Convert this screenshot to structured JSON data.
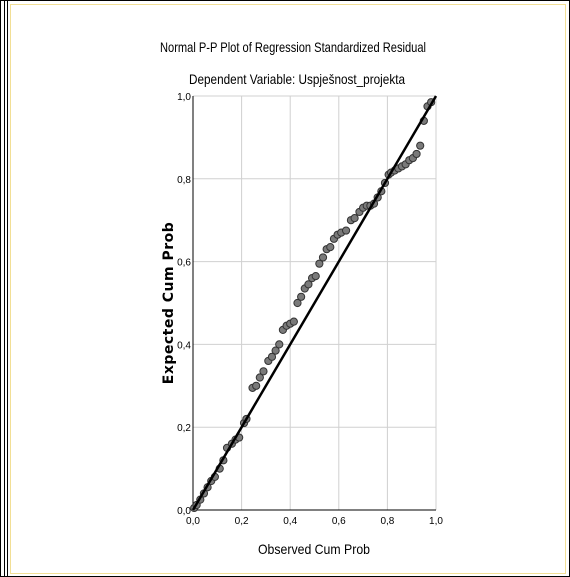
{
  "chart_data": {
    "type": "scatter",
    "title": "Normal P-P Plot of Regression Standardized Residual",
    "subtitle": "Dependent Variable: Uspješnost_projekta",
    "xlabel": "Observed Cum Prob",
    "ylabel": "Expected Cum Prob",
    "xlim": [
      0,
      1
    ],
    "ylim": [
      0,
      1
    ],
    "x_ticks": [
      "0,0",
      "0,2",
      "0,4",
      "0,6",
      "0,8",
      "1,0"
    ],
    "y_ticks": [
      "0,0",
      "0,2",
      "0,4",
      "0,6",
      "0,8",
      "1,0"
    ],
    "grid": true,
    "reference_line": [
      [
        0,
        0
      ],
      [
        1,
        1
      ]
    ],
    "series": [
      {
        "points": [
          [
            0.005,
            0.005
          ],
          [
            0.015,
            0.012
          ],
          [
            0.03,
            0.025
          ],
          [
            0.045,
            0.04
          ],
          [
            0.06,
            0.055
          ],
          [
            0.075,
            0.07
          ],
          [
            0.09,
            0.08
          ],
          [
            0.11,
            0.1
          ],
          [
            0.125,
            0.12
          ],
          [
            0.14,
            0.15
          ],
          [
            0.16,
            0.16
          ],
          [
            0.175,
            0.17
          ],
          [
            0.19,
            0.175
          ],
          [
            0.21,
            0.21
          ],
          [
            0.22,
            0.22
          ],
          [
            0.245,
            0.295
          ],
          [
            0.26,
            0.3
          ],
          [
            0.275,
            0.32
          ],
          [
            0.29,
            0.335
          ],
          [
            0.31,
            0.36
          ],
          [
            0.325,
            0.37
          ],
          [
            0.34,
            0.385
          ],
          [
            0.355,
            0.4
          ],
          [
            0.37,
            0.435
          ],
          [
            0.385,
            0.445
          ],
          [
            0.4,
            0.45
          ],
          [
            0.415,
            0.455
          ],
          [
            0.43,
            0.5
          ],
          [
            0.445,
            0.515
          ],
          [
            0.46,
            0.535
          ],
          [
            0.475,
            0.545
          ],
          [
            0.49,
            0.56
          ],
          [
            0.505,
            0.565
          ],
          [
            0.52,
            0.595
          ],
          [
            0.535,
            0.61
          ],
          [
            0.55,
            0.63
          ],
          [
            0.565,
            0.635
          ],
          [
            0.58,
            0.655
          ],
          [
            0.595,
            0.665
          ],
          [
            0.61,
            0.67
          ],
          [
            0.63,
            0.675
          ],
          [
            0.65,
            0.7
          ],
          [
            0.665,
            0.705
          ],
          [
            0.685,
            0.72
          ],
          [
            0.7,
            0.73
          ],
          [
            0.715,
            0.735
          ],
          [
            0.73,
            0.735
          ],
          [
            0.745,
            0.74
          ],
          [
            0.76,
            0.755
          ],
          [
            0.775,
            0.77
          ],
          [
            0.79,
            0.79
          ],
          [
            0.805,
            0.81
          ],
          [
            0.815,
            0.815
          ],
          [
            0.83,
            0.82
          ],
          [
            0.845,
            0.825
          ],
          [
            0.86,
            0.83
          ],
          [
            0.875,
            0.835
          ],
          [
            0.89,
            0.845
          ],
          [
            0.905,
            0.85
          ],
          [
            0.92,
            0.86
          ],
          [
            0.935,
            0.88
          ],
          [
            0.95,
            0.94
          ],
          [
            0.965,
            0.975
          ],
          [
            0.98,
            0.985
          ]
        ]
      }
    ]
  }
}
